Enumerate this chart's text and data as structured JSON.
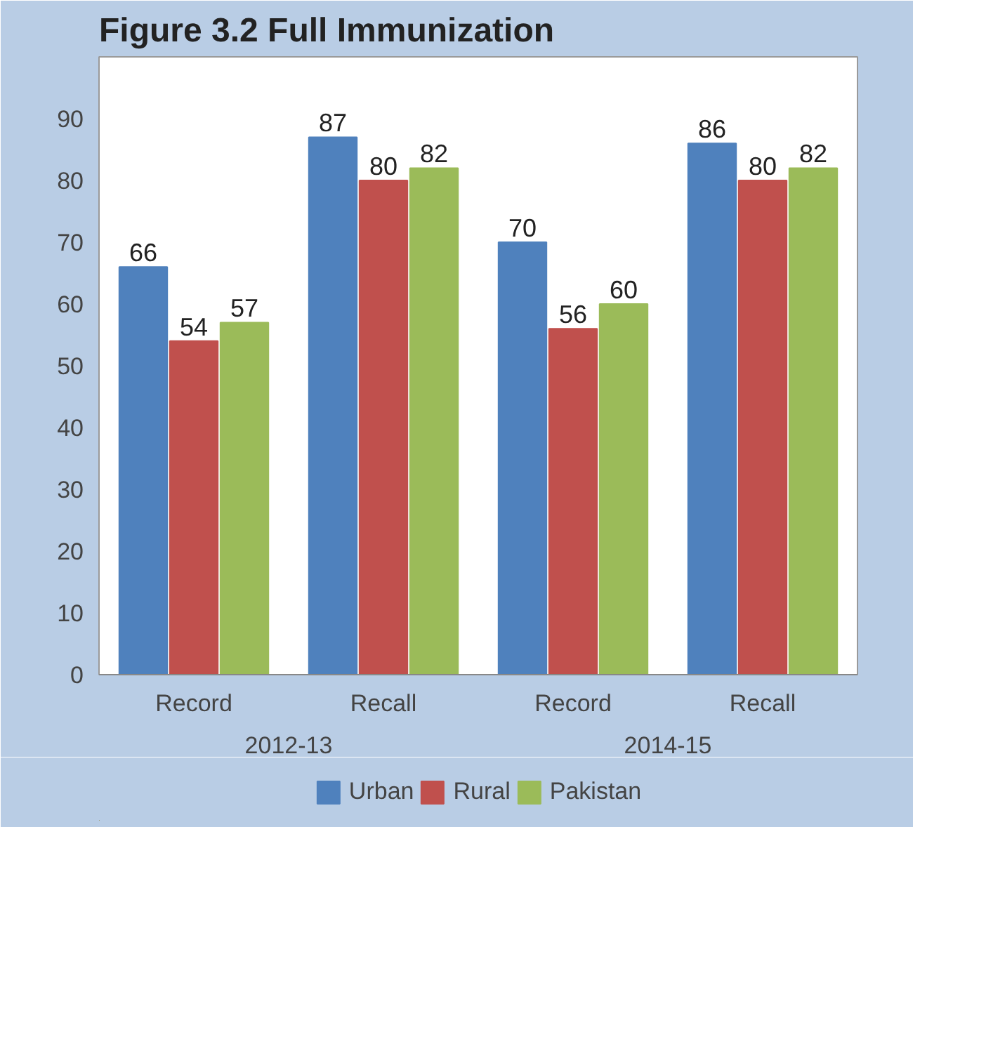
{
  "chart_data": {
    "type": "bar",
    "title": "Figure 3.2 Full Immunization",
    "categories": [
      "Record",
      "Recall",
      "Record",
      "Recall"
    ],
    "annotations": [
      "2012-13",
      "2014-15"
    ],
    "series": [
      {
        "name": "Urban",
        "color": "#4f81bd",
        "values": [
          66,
          87,
          70,
          86
        ]
      },
      {
        "name": "Rural",
        "color": "#c0504d",
        "values": [
          54,
          80,
          56,
          80
        ]
      },
      {
        "name": "Pakistan",
        "color": "#9bbb59",
        "values": [
          57,
          82,
          60,
          82
        ]
      }
    ],
    "ylim": [
      0,
      100
    ],
    "yticks": [
      0,
      10,
      20,
      30,
      40,
      50,
      60,
      70,
      80,
      90
    ],
    "data_labels": true,
    "grid": false,
    "legend": "bottom"
  }
}
